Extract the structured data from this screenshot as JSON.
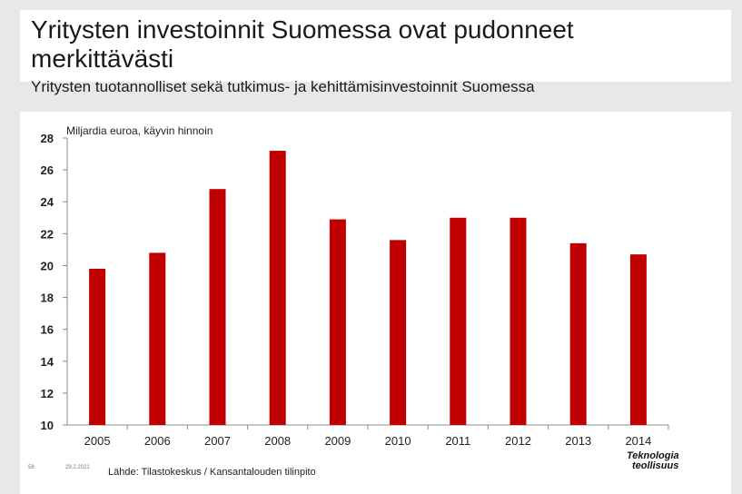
{
  "header": {
    "title": "Yritysten investoinnit Suomessa ovat pudonneet merkittävästi",
    "subtitle": "Yritysten tuotannolliset sekä tutkimus- ja kehittämisinvestoinnit Suomessa"
  },
  "footer": {
    "slide_number": "58",
    "date": "29.2.2021",
    "source": "Lähde: Tilastokeskus / Kansantalouden tilinpito",
    "logo_line1": "Teknologia",
    "logo_line2": "teollisuus"
  },
  "chart_data": {
    "type": "bar",
    "title": "",
    "ylabel": "Miljardia euroa, käyvin hinnoin",
    "xlabel": "",
    "categories": [
      "2005",
      "2006",
      "2007",
      "2008",
      "2009",
      "2010",
      "2011",
      "2012",
      "2013",
      "2014"
    ],
    "series": [
      {
        "values": [
          19.8,
          20.8,
          24.8,
          27.2,
          22.9,
          21.6,
          23.0,
          23.0,
          21.4,
          20.7
        ],
        "color": "#c00000"
      }
    ],
    "ylim": [
      10,
      28
    ],
    "yticks": [
      10,
      12,
      14,
      16,
      18,
      20,
      22,
      24,
      26,
      28
    ],
    "grid": false,
    "legend": "none"
  }
}
